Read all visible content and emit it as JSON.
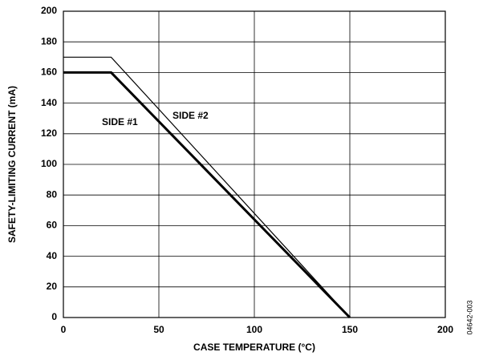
{
  "chart_data": {
    "type": "line",
    "x_label": "CASE TEMPERATURE (°C)",
    "y_label": "SAFETY-LIMITING CURRENT (mA)",
    "x": [
      0,
      25,
      150
    ],
    "series": [
      {
        "name": "SIDE #1",
        "color": "#000000",
        "width": 3,
        "values": [
          160,
          160,
          0
        ]
      },
      {
        "name": "SIDE #2",
        "color": "#000000",
        "width": 1.2,
        "values": [
          170,
          170,
          0
        ]
      }
    ],
    "xlim": [
      0,
      200
    ],
    "xticks": [
      0,
      50,
      100,
      150,
      200
    ],
    "ylim": [
      0,
      200
    ],
    "yticks": [
      0,
      20,
      40,
      60,
      80,
      100,
      120,
      140,
      160,
      180,
      200
    ],
    "grid": true,
    "figure_code": "04642-003"
  }
}
